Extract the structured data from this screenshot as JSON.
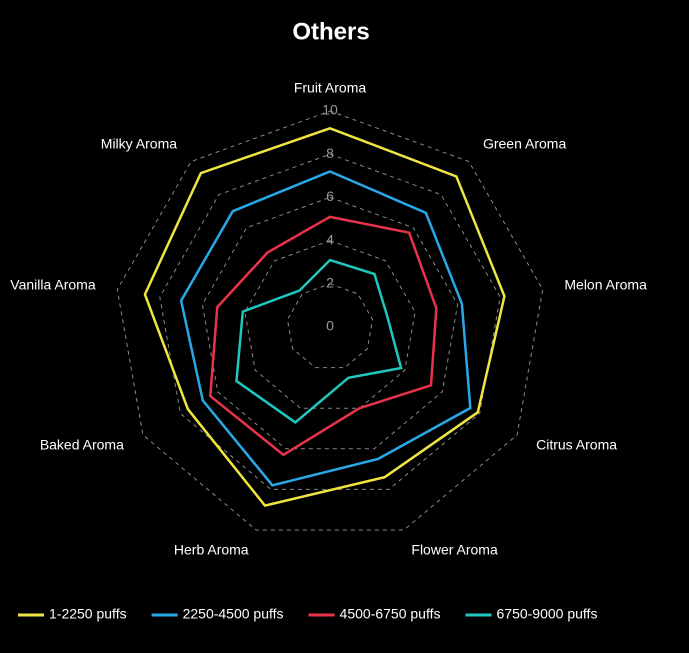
{
  "chart_data": {
    "type": "radar",
    "title": "Others",
    "categories": [
      "Fruit Aroma",
      "Green Aroma",
      "Melon Aroma",
      "Citrus Aroma",
      "Flower Aroma",
      "Herb Aroma",
      "Baked Aroma",
      "Vanilla Aroma",
      "Milky Aroma"
    ],
    "ylim": [
      0,
      10
    ],
    "yticks": [
      0,
      2,
      4,
      6,
      8,
      10
    ],
    "grid": true,
    "legend": "bottom",
    "series": [
      {
        "name": "1-2250 puffs",
        "color": "#f0e442",
        "values": [
          9.2,
          9.1,
          8.2,
          7.9,
          7.4,
          8.8,
          7.6,
          8.7,
          9.3
        ]
      },
      {
        "name": "2250-4500 puffs",
        "color": "#29a8e8",
        "values": [
          7.2,
          6.9,
          6.2,
          7.5,
          6.5,
          7.8,
          6.8,
          7.0,
          7.0
        ]
      },
      {
        "name": "4500-6750 puffs",
        "color": "#e8334a",
        "values": [
          5.1,
          5.7,
          5.0,
          5.4,
          4.0,
          6.3,
          6.4,
          5.3,
          4.5
        ]
      },
      {
        "name": "6750-9000 puffs",
        "color": "#1ec8be",
        "values": [
          3.1,
          3.2,
          2.7,
          3.8,
          2.5,
          4.7,
          5.0,
          4.1,
          2.2
        ]
      }
    ]
  }
}
